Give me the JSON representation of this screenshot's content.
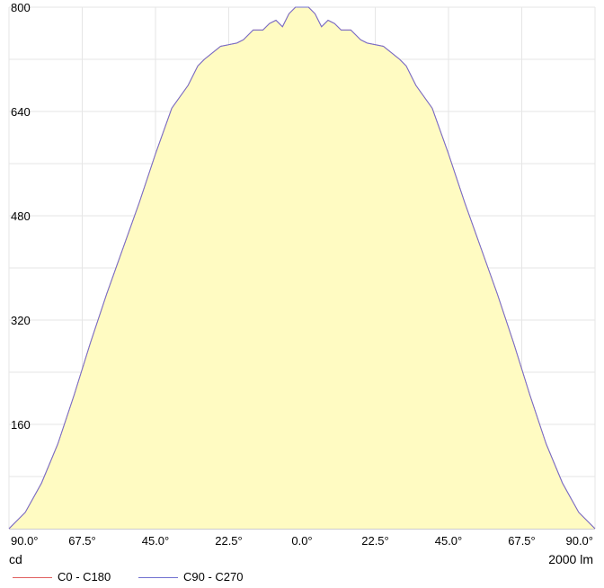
{
  "chart_data": {
    "type": "area",
    "title": "",
    "ylabel": "cd",
    "xlabel": "2000 lm",
    "ylim": [
      0,
      800
    ],
    "y_ticks": [
      "160",
      "320",
      "480",
      "640",
      "800"
    ],
    "x_ticks": [
      "90.0°",
      "67.5°",
      "45.0°",
      "22.5°",
      "0.0°",
      "22.5°",
      "45.0°",
      "67.5°",
      "90.0°"
    ],
    "grid": true,
    "legend_placement": "bottom-left",
    "fill_color": "#fffbc2",
    "series": [
      {
        "name": "C0 - C180",
        "color": "#e06060",
        "x": [
          -90,
          -85,
          -80,
          -75,
          -70,
          -65,
          -60,
          -55,
          -50,
          -45,
          -40,
          -35,
          -32,
          -30,
          -25,
          -20,
          -18,
          -15,
          -12,
          -10,
          -8,
          -6,
          -4,
          -2,
          0,
          2,
          4,
          6,
          8,
          10,
          12,
          15,
          18,
          20,
          25,
          30,
          32,
          35,
          40,
          45,
          50,
          55,
          60,
          65,
          70,
          75,
          80,
          85,
          90
        ],
        "y": [
          0,
          25,
          70,
          130,
          205,
          285,
          360,
          430,
          500,
          575,
          645,
          680,
          710,
          720,
          740,
          745,
          750,
          765,
          765,
          775,
          780,
          770,
          790,
          800,
          800,
          800,
          790,
          770,
          780,
          775,
          765,
          765,
          750,
          745,
          740,
          720,
          710,
          680,
          645,
          575,
          500,
          430,
          360,
          285,
          205,
          130,
          70,
          25,
          0
        ]
      },
      {
        "name": "C90 - C270",
        "color": "#7070d0",
        "x": [
          -90,
          -85,
          -80,
          -75,
          -70,
          -65,
          -60,
          -55,
          -50,
          -45,
          -40,
          -35,
          -32,
          -30,
          -25,
          -20,
          -18,
          -15,
          -12,
          -10,
          -8,
          -6,
          -4,
          -2,
          0,
          2,
          4,
          6,
          8,
          10,
          12,
          15,
          18,
          20,
          25,
          30,
          32,
          35,
          40,
          45,
          50,
          55,
          60,
          65,
          70,
          75,
          80,
          85,
          90
        ],
        "y": [
          0,
          25,
          70,
          130,
          205,
          285,
          360,
          430,
          500,
          575,
          645,
          680,
          710,
          720,
          740,
          745,
          750,
          765,
          765,
          775,
          780,
          770,
          790,
          800,
          800,
          800,
          790,
          770,
          780,
          775,
          765,
          765,
          750,
          745,
          740,
          720,
          710,
          680,
          645,
          575,
          500,
          430,
          360,
          285,
          205,
          130,
          70,
          25,
          0
        ]
      }
    ]
  }
}
